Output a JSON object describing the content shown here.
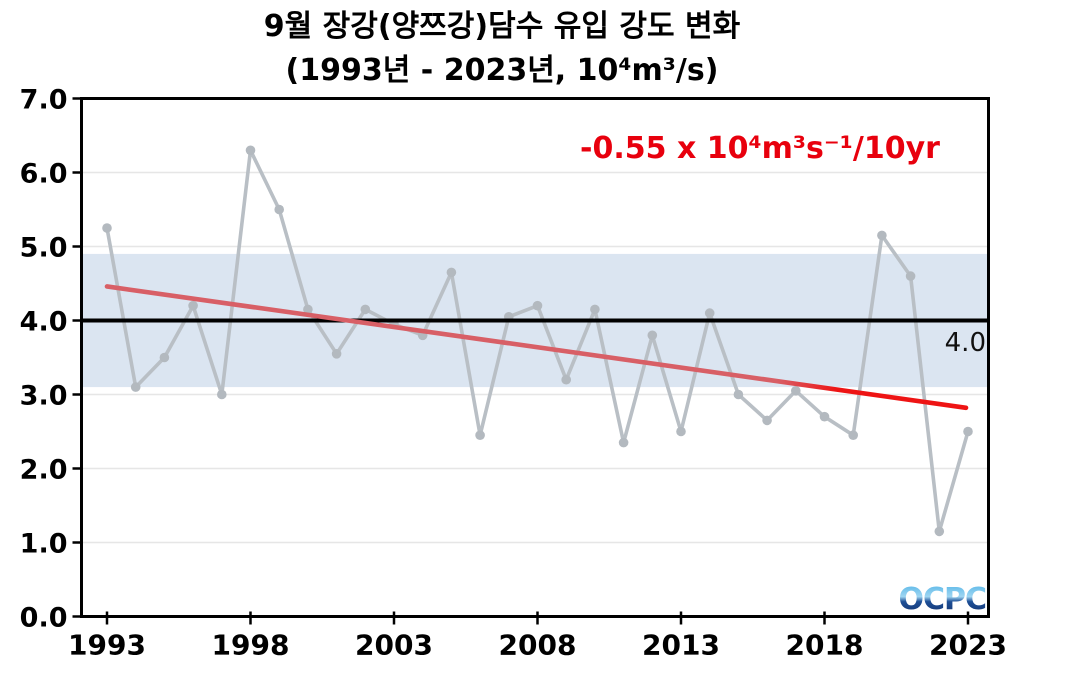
{
  "chart_data": {
    "type": "line",
    "title": "9월 장강(양쯔강)담수 유입 강도 변화",
    "subtitle": "(1993년 - 2023년, 10⁴m³/s)",
    "x": [
      1993,
      1994,
      1995,
      1996,
      1997,
      1998,
      1999,
      2000,
      2001,
      2002,
      2003,
      2004,
      2005,
      2006,
      2007,
      2008,
      2009,
      2010,
      2011,
      2012,
      2013,
      2014,
      2015,
      2016,
      2017,
      2018,
      2019,
      2020,
      2021,
      2022,
      2023
    ],
    "series": [
      {
        "name": "september-yangtze-freshwater-inflow",
        "values": [
          5.25,
          3.1,
          3.5,
          4.2,
          3.0,
          6.3,
          5.5,
          4.15,
          3.55,
          4.15,
          3.95,
          3.8,
          4.65,
          2.45,
          4.05,
          4.2,
          3.2,
          4.15,
          2.35,
          3.8,
          2.5,
          4.1,
          3.0,
          2.65,
          3.05,
          2.7,
          2.45,
          5.15,
          4.6,
          1.15,
          2.5
        ],
        "color": "#b9bfc5",
        "marker_color": "#b3b9bf"
      }
    ],
    "xlabel": "",
    "ylabel": "",
    "ylim": [
      0.0,
      7.0
    ],
    "ytick_labels": [
      "0.0",
      "1.0",
      "2.0",
      "3.0",
      "4.0",
      "5.0",
      "6.0",
      "7.0"
    ],
    "yticks": [
      0,
      1,
      2,
      3,
      4,
      5,
      6,
      7
    ],
    "xticks": [
      1993,
      1998,
      2003,
      2008,
      2013,
      2018,
      2023
    ],
    "grid": true,
    "grid_color": "#e6e6e6",
    "mean_line": {
      "value": 4.0,
      "label": "4.0",
      "color": "#000000"
    },
    "std_band": {
      "from": 3.1,
      "to": 4.9,
      "color": "#dbe5f1"
    },
    "trend": {
      "start_year": 1993,
      "end_year": 2023,
      "start_value": 4.46,
      "end_value": 2.82,
      "slope_label": "-0.55 x 10⁴m³s⁻¹/10yr",
      "color_over_band": "#d85f66",
      "color_over_white": "#ee1414"
    },
    "annotation_color": "#e8000d",
    "legend": "none",
    "logo_text": "OCPC",
    "logo_colors": {
      "top": "#4fb3e6",
      "mid": "#9fd6f2",
      "low": "#1e4f96",
      "bottom": "#132f6a"
    }
  }
}
